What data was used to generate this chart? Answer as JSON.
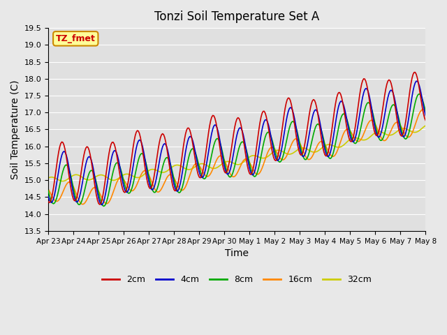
{
  "title": "Tonzi Soil Temperature Set A",
  "xlabel": "Time",
  "ylabel": "Soil Temperature (C)",
  "ylim": [
    13.5,
    19.5
  ],
  "background_color": "#e8e8e8",
  "plot_bg_color": "#e0e0e0",
  "colors": {
    "2cm": "#cc0000",
    "4cm": "#0000cc",
    "8cm": "#00aa00",
    "16cm": "#ff8800",
    "32cm": "#cccc00"
  },
  "xtick_labels": [
    "Apr 23",
    "Apr 24",
    "Apr 25",
    "Apr 26",
    "Apr 27",
    "Apr 28",
    "Apr 29",
    "Apr 30",
    "May 1",
    "May 2",
    "May 3",
    "May 4",
    "May 5",
    "May 6",
    "May 7",
    "May 8"
  ],
  "ytick_vals": [
    13.5,
    14.0,
    14.5,
    15.0,
    15.5,
    16.0,
    16.5,
    17.0,
    17.5,
    18.0,
    18.5,
    19.0,
    19.5
  ],
  "label_box_text": "TZ_fmet",
  "label_box_color": "#ffff99",
  "label_box_edge": "#cc8800"
}
